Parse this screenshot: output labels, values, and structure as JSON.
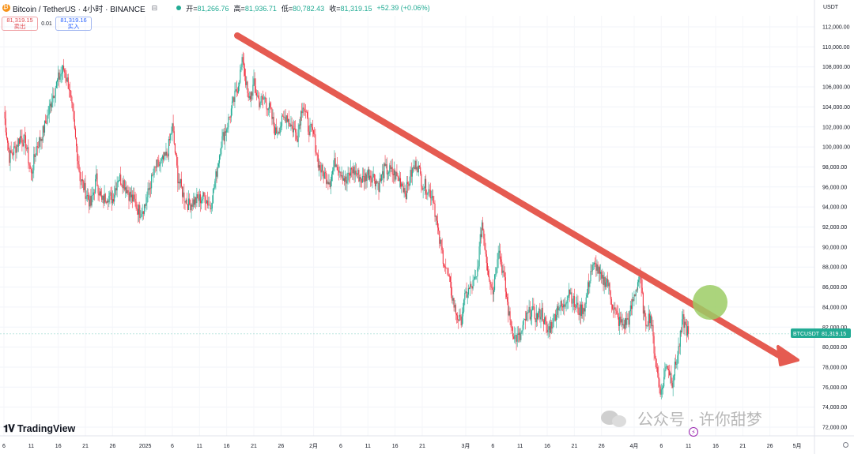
{
  "header": {
    "symbol": "Bitcoin / TetherUS · 4小时 · BINANCE",
    "open_label": "开",
    "open": "81,266.76",
    "high_label": "高",
    "high": "81,936.71",
    "low_label": "低",
    "low": "80,782.43",
    "close_label": "收",
    "close": "81,319.15",
    "change": "+52.39 (+0.06%)"
  },
  "trade": {
    "sell_price": "81,319.15",
    "sell_label": "卖出",
    "spread": "0.01",
    "buy_price": "81,319.16",
    "buy_label": "买入"
  },
  "currency": "USDT",
  "price_tag": {
    "symbol": "BTCUSDT",
    "price": "81,319.15"
  },
  "branding": {
    "logo": "TradingView",
    "watermark": "公众号 · 许你甜梦"
  },
  "colors": {
    "up": "#22ab94",
    "down": "#f23645",
    "trendline": "#e55b51",
    "highlight": "#9ccc65"
  },
  "chart_data": {
    "type": "candlestick",
    "timeframe": "4小时",
    "ylim": [
      72000,
      112000
    ],
    "y_ticks": [
      72000,
      74000,
      76000,
      78000,
      80000,
      82000,
      84000,
      86000,
      88000,
      90000,
      92000,
      94000,
      96000,
      98000,
      100000,
      102000,
      104000,
      106000,
      108000,
      110000,
      112000
    ],
    "y_tick_labels": [
      "72,000.00",
      "74,000.00",
      "76,000.00",
      "78,000.00",
      "80,000.00",
      "82,000.00",
      "84,000.00",
      "86,000.00",
      "88,000.00",
      "90,000.00",
      "92,000.00",
      "94,000.00",
      "96,000.00",
      "98,000.00",
      "100,000.00",
      "102,000.00",
      "104,000.00",
      "106,000.00",
      "108,000.00",
      "110,000.00",
      "112,000.00"
    ],
    "x_ticks": [
      {
        "label": "6",
        "d": 0
      },
      {
        "label": "11",
        "d": 5
      },
      {
        "label": "16",
        "d": 10
      },
      {
        "label": "21",
        "d": 15
      },
      {
        "label": "26",
        "d": 20
      },
      {
        "label": "2025",
        "d": 26
      },
      {
        "label": "6",
        "d": 31
      },
      {
        "label": "11",
        "d": 36
      },
      {
        "label": "16",
        "d": 41
      },
      {
        "label": "21",
        "d": 46
      },
      {
        "label": "26",
        "d": 51
      },
      {
        "label": "2月",
        "d": 57
      },
      {
        "label": "6",
        "d": 62
      },
      {
        "label": "11",
        "d": 67
      },
      {
        "label": "16",
        "d": 72
      },
      {
        "label": "21",
        "d": 77
      },
      {
        "label": "3月",
        "d": 85
      },
      {
        "label": "6",
        "d": 90
      },
      {
        "label": "11",
        "d": 95
      },
      {
        "label": "16",
        "d": 100
      },
      {
        "label": "21",
        "d": 105
      },
      {
        "label": "26",
        "d": 110
      },
      {
        "label": "4月",
        "d": 116
      },
      {
        "label": "6",
        "d": 121
      },
      {
        "label": "11",
        "d": 126
      },
      {
        "label": "16",
        "d": 131
      },
      {
        "label": "21",
        "d": 136
      },
      {
        "label": "26",
        "d": 141
      },
      {
        "label": "5月",
        "d": 146
      }
    ],
    "x_start": "2024-12-06",
    "closes": [
      [
        0,
        103500
      ],
      [
        1,
        99000
      ],
      [
        2,
        99800
      ],
      [
        3,
        101000
      ],
      [
        4,
        100400
      ],
      [
        5,
        97200
      ],
      [
        6,
        100000
      ],
      [
        7,
        101200
      ],
      [
        8,
        103000
      ],
      [
        9,
        105200
      ],
      [
        10,
        106800
      ],
      [
        11,
        107800
      ],
      [
        12,
        106000
      ],
      [
        13,
        101500
      ],
      [
        14,
        97000
      ],
      [
        15,
        95500
      ],
      [
        16,
        94200
      ],
      [
        17,
        96800
      ],
      [
        18,
        94500
      ],
      [
        19,
        95200
      ],
      [
        20,
        94800
      ],
      [
        21,
        97000
      ],
      [
        22,
        96500
      ],
      [
        23,
        95300
      ],
      [
        24,
        94500
      ],
      [
        25,
        93500
      ],
      [
        26,
        94200
      ],
      [
        27,
        96400
      ],
      [
        28,
        98000
      ],
      [
        29,
        98400
      ],
      [
        30,
        99200
      ],
      [
        31,
        102000
      ],
      [
        32,
        97000
      ],
      [
        33,
        95200
      ],
      [
        34,
        94200
      ],
      [
        35,
        94600
      ],
      [
        36,
        94800
      ],
      [
        37,
        95000
      ],
      [
        38,
        94000
      ],
      [
        39,
        97000
      ],
      [
        40,
        100500
      ],
      [
        41,
        102000
      ],
      [
        42,
        104000
      ],
      [
        43,
        106000
      ],
      [
        44,
        108800
      ],
      [
        45,
        104500
      ],
      [
        46,
        106200
      ],
      [
        47,
        104500
      ],
      [
        48,
        104800
      ],
      [
        49,
        103600
      ],
      [
        50,
        101400
      ],
      [
        51,
        102300
      ],
      [
        52,
        103200
      ],
      [
        53,
        102000
      ],
      [
        54,
        101200
      ],
      [
        55,
        104500
      ],
      [
        56,
        102000
      ],
      [
        57,
        101200
      ],
      [
        58,
        98000
      ],
      [
        59,
        97200
      ],
      [
        60,
        96600
      ],
      [
        61,
        98600
      ],
      [
        62,
        97600
      ],
      [
        63,
        96400
      ],
      [
        64,
        97800
      ],
      [
        65,
        97300
      ],
      [
        66,
        96700
      ],
      [
        67,
        97400
      ],
      [
        68,
        97000
      ],
      [
        69,
        96200
      ],
      [
        70,
        97700
      ],
      [
        71,
        97600
      ],
      [
        72,
        97200
      ],
      [
        73,
        96600
      ],
      [
        74,
        95500
      ],
      [
        75,
        97400
      ],
      [
        76,
        98500
      ],
      [
        77,
        96400
      ],
      [
        78,
        95800
      ],
      [
        79,
        95000
      ],
      [
        80,
        91000
      ],
      [
        81,
        88600
      ],
      [
        82,
        86400
      ],
      [
        83,
        83800
      ],
      [
        84,
        82400
      ],
      [
        85,
        85200
      ],
      [
        86,
        86000
      ],
      [
        87,
        86800
      ],
      [
        88,
        92500
      ],
      [
        89,
        88000
      ],
      [
        90,
        85500
      ],
      [
        91,
        90000
      ],
      [
        92,
        87000
      ],
      [
        93,
        83000
      ],
      [
        94,
        81000
      ],
      [
        95,
        80900
      ],
      [
        96,
        82800
      ],
      [
        97,
        83600
      ],
      [
        98,
        83000
      ],
      [
        99,
        83500
      ],
      [
        100,
        81500
      ],
      [
        101,
        82500
      ],
      [
        102,
        84200
      ],
      [
        103,
        83900
      ],
      [
        104,
        85900
      ],
      [
        105,
        84200
      ],
      [
        106,
        83600
      ],
      [
        107,
        84200
      ],
      [
        108,
        87600
      ],
      [
        109,
        88200
      ],
      [
        110,
        86600
      ],
      [
        111,
        86700
      ],
      [
        112,
        84300
      ],
      [
        113,
        82700
      ],
      [
        114,
        82200
      ],
      [
        115,
        82800
      ],
      [
        116,
        85100
      ],
      [
        117,
        87200
      ],
      [
        118,
        82400
      ],
      [
        119,
        83200
      ],
      [
        120,
        78300
      ],
      [
        121,
        75400
      ],
      [
        122,
        78500
      ],
      [
        123,
        76600
      ],
      [
        124,
        79200
      ],
      [
        125,
        82700
      ],
      [
        126,
        81319
      ]
    ]
  }
}
